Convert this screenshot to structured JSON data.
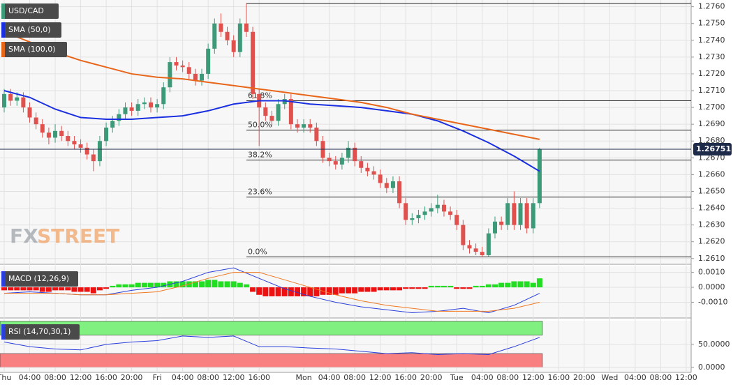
{
  "chart_data": [
    {
      "type": "candlestick",
      "title": "USD/CAD",
      "up_color": "#3c9a78",
      "down_color": "#e0504d",
      "open": [
        1.27,
        1.2708,
        1.2704,
        1.2706,
        1.27,
        1.2694,
        1.269,
        1.2685,
        1.2682,
        1.2686,
        1.2683,
        1.268,
        1.2678,
        1.2676,
        1.2672,
        1.2668,
        1.268,
        1.2688,
        1.2692,
        1.2696,
        1.27,
        1.2698,
        1.2702,
        1.2703,
        1.27,
        1.2702,
        1.2712,
        1.2727,
        1.2725,
        1.2724,
        1.272,
        1.2716,
        1.272,
        1.2735,
        1.275,
        1.2745,
        1.274,
        1.2733,
        1.275,
        1.2745,
        1.2708,
        1.27,
        1.2695,
        1.2692,
        1.2702,
        1.2705,
        1.269,
        1.2688,
        1.269,
        1.2688,
        1.268,
        1.267,
        1.2668,
        1.2666,
        1.267,
        1.2676,
        1.2668,
        1.2664,
        1.2662,
        1.266,
        1.2655,
        1.2652,
        1.2656,
        1.2643,
        1.2633,
        1.2634,
        1.2636,
        1.2638,
        1.264,
        1.2642,
        1.2638,
        1.2636,
        1.263,
        1.2618,
        1.2616,
        1.2614,
        1.2612,
        1.2625,
        1.2632,
        1.263,
        1.2643,
        1.263,
        1.2643,
        1.2628,
        1.2643
      ],
      "high": [
        1.2711,
        1.2711,
        1.2709,
        1.2709,
        1.2703,
        1.2697,
        1.2693,
        1.2688,
        1.269,
        1.2689,
        1.2686,
        1.2683,
        1.2681,
        1.2679,
        1.2675,
        1.2683,
        1.2691,
        1.2695,
        1.2699,
        1.2703,
        1.2703,
        1.2705,
        1.2706,
        1.2706,
        1.2705,
        1.2715,
        1.273,
        1.273,
        1.2728,
        1.2727,
        1.2723,
        1.2723,
        1.2738,
        1.2753,
        1.2756,
        1.2748,
        1.2743,
        1.2753,
        1.2762,
        1.2748,
        1.2711,
        1.2703,
        1.2698,
        1.2705,
        1.2708,
        1.2708,
        1.2693,
        1.2693,
        1.2693,
        1.2691,
        1.2683,
        1.2673,
        1.2671,
        1.2673,
        1.268,
        1.2679,
        1.2671,
        1.2667,
        1.2665,
        1.2663,
        1.2658,
        1.2659,
        1.2659,
        1.2646,
        1.2637,
        1.2639,
        1.2641,
        1.2643,
        1.2648,
        1.2645,
        1.2641,
        1.2639,
        1.2633,
        1.2621,
        1.2619,
        1.2617,
        1.2628,
        1.2635,
        1.2635,
        1.2646,
        1.265,
        1.2646,
        1.2646,
        1.2646,
        1.2676
      ],
      "low": [
        1.2697,
        1.2701,
        1.2701,
        1.2697,
        1.2691,
        1.2687,
        1.2682,
        1.2678,
        1.2679,
        1.268,
        1.2677,
        1.2675,
        1.2673,
        1.2669,
        1.2662,
        1.2665,
        1.2677,
        1.2685,
        1.2689,
        1.2693,
        1.2695,
        1.2695,
        1.2699,
        1.2697,
        1.2697,
        1.2699,
        1.2709,
        1.2722,
        1.2721,
        1.2717,
        1.2713,
        1.2713,
        1.2717,
        1.2732,
        1.2742,
        1.2737,
        1.273,
        1.273,
        1.2742,
        1.2705,
        1.2677,
        1.2692,
        1.2689,
        1.2689,
        1.2699,
        1.2687,
        1.2685,
        1.2685,
        1.2685,
        1.2677,
        1.2667,
        1.2665,
        1.2663,
        1.2663,
        1.2667,
        1.2665,
        1.2661,
        1.2659,
        1.2657,
        1.2652,
        1.2649,
        1.2649,
        1.264,
        1.263,
        1.263,
        1.2631,
        1.2633,
        1.2635,
        1.2637,
        1.2635,
        1.2633,
        1.2627,
        1.2615,
        1.2613,
        1.2612,
        1.2611,
        1.2611,
        1.2622,
        1.2627,
        1.2627,
        1.2627,
        1.2627,
        1.2625,
        1.2625,
        1.264
      ],
      "close": [
        1.2708,
        1.2704,
        1.2706,
        1.27,
        1.2694,
        1.269,
        1.2685,
        1.2682,
        1.2686,
        1.2683,
        1.268,
        1.2678,
        1.2676,
        1.2672,
        1.2668,
        1.268,
        1.2688,
        1.2692,
        1.2696,
        1.27,
        1.2698,
        1.2702,
        1.2703,
        1.27,
        1.2702,
        1.2712,
        1.2727,
        1.2725,
        1.2724,
        1.272,
        1.2716,
        1.272,
        1.2735,
        1.275,
        1.2745,
        1.274,
        1.2733,
        1.275,
        1.2745,
        1.2708,
        1.27,
        1.2695,
        1.2692,
        1.2702,
        1.2705,
        1.269,
        1.2688,
        1.269,
        1.2688,
        1.268,
        1.267,
        1.2668,
        1.2666,
        1.267,
        1.2676,
        1.2668,
        1.2664,
        1.2662,
        1.266,
        1.2655,
        1.2652,
        1.2656,
        1.2643,
        1.2633,
        1.2634,
        1.2636,
        1.2638,
        1.264,
        1.2642,
        1.2638,
        1.2636,
        1.263,
        1.2618,
        1.2616,
        1.2614,
        1.2612,
        1.2625,
        1.2632,
        1.263,
        1.2643,
        1.263,
        1.2643,
        1.2628,
        1.2643,
        1.26751
      ],
      "last_price": 1.26751,
      "last_price_color": "#1e2a4a",
      "series": [
        {
          "name": "SMA (50,0)",
          "color": "#1a2fe0",
          "values": [
            1.271,
            1.2706,
            1.2699,
            1.2694,
            1.2693,
            1.2693,
            1.2694,
            1.2695,
            1.2698,
            1.2702,
            1.2704,
            1.2704,
            1.2702,
            1.2701,
            1.27,
            1.2698,
            1.2696,
            1.2692,
            1.2686,
            1.2679,
            1.2671,
            1.2662
          ]
        },
        {
          "name": "SMA (100,0)",
          "color": "#e8661a",
          "values": [
            1.2745,
            1.2739,
            1.2733,
            1.2728,
            1.2724,
            1.272,
            1.2718,
            1.2717,
            1.2715,
            1.2713,
            1.2711,
            1.2709,
            1.2707,
            1.2705,
            1.2703,
            1.27,
            1.2696,
            1.2693,
            1.269,
            1.2687,
            1.2684,
            1.2681
          ]
        }
      ],
      "fib_top": 1.2762,
      "fib_levels": [
        {
          "value": 1.2704,
          "label": "61.8%"
        },
        {
          "value": 1.26865,
          "label": "50.0%"
        },
        {
          "value": 1.26687,
          "label": "38.2%"
        },
        {
          "value": 1.26466,
          "label": "23.6%"
        },
        {
          "value": 1.2611,
          "label": "0.0%"
        }
      ],
      "watermark": [
        "FX",
        "STREET"
      ],
      "ylim": [
        1.2607,
        1.2764
      ],
      "yticks": [
        {
          "value": 1.261,
          "label": "1.2610"
        },
        {
          "value": 1.262,
          "label": "1.2620"
        },
        {
          "value": 1.263,
          "label": "1.2630"
        },
        {
          "value": 1.264,
          "label": "1.2640"
        },
        {
          "value": 1.265,
          "label": "1.2650"
        },
        {
          "value": 1.266,
          "label": "1.2660"
        },
        {
          "value": 1.267,
          "label": "1.2670"
        },
        {
          "value": 1.268,
          "label": "1.2680"
        },
        {
          "value": 1.269,
          "label": "1.2690"
        },
        {
          "value": 1.27,
          "label": "1.2700"
        },
        {
          "value": 1.271,
          "label": "1.2710"
        },
        {
          "value": 1.272,
          "label": "1.2720"
        },
        {
          "value": 1.273,
          "label": "1.2730"
        },
        {
          "value": 1.274,
          "label": "1.2740"
        },
        {
          "value": 1.275,
          "label": "1.2750"
        },
        {
          "value": 1.276,
          "label": "1.2760"
        }
      ],
      "grid": true
    },
    {
      "type": "macd",
      "title": "MACD (12,26,9)",
      "title_color": "#2a3fdc",
      "histogram": [
        -0.0002,
        -0.0002,
        -0.0002,
        -0.0002,
        -0.0002,
        -0.0002,
        -0.0003,
        -0.0003,
        -0.0002,
        -0.0002,
        -0.0002,
        -0.0003,
        -0.0003,
        -0.0003,
        -0.0004,
        -0.0002,
        -0.0001,
        0.0001,
        0.0002,
        0.0002,
        0.0002,
        0.0003,
        0.0003,
        0.0003,
        0.0003,
        0.0003,
        0.0004,
        0.0004,
        0.0004,
        0.0004,
        0.0004,
        0.0004,
        0.0005,
        0.0005,
        0.0004,
        0.0004,
        0.0004,
        0.0003,
        0.0002,
        -0.0003,
        -0.0005,
        -0.0006,
        -0.0006,
        -0.0006,
        -0.0006,
        -0.0006,
        -0.0006,
        -0.0006,
        -0.0006,
        -0.0006,
        -0.0005,
        -0.0005,
        -0.0005,
        -0.0004,
        -0.0004,
        -0.0004,
        -0.0003,
        -0.0003,
        -0.0003,
        -0.0002,
        -0.0002,
        -0.0002,
        -0.0002,
        -0.0001,
        -0.0001,
        -0.0001,
        -0.0001,
        0.0001,
        0.0001,
        0.0001,
        0.0001,
        -0.0001,
        -0.0001,
        -0.0001,
        0.0001,
        0.0001,
        0.0002,
        0.0002,
        0.0003,
        0.0003,
        0.0004,
        0.0004,
        0.0004,
        0.0003,
        0.0006
      ],
      "up_color": "#22dd22",
      "down_color": "#ee1111",
      "macd_line": {
        "color": "#2a3fdc",
        "values": [
          -0.0004,
          -0.0003,
          -0.0004,
          -0.0005,
          -0.0005,
          -0.0002,
          0,
          0.0004,
          0.001,
          0.0013,
          0.0006,
          -0.0001,
          -0.0006,
          -0.001,
          -0.0013,
          -0.0015,
          -0.0017,
          -0.0016,
          -0.0014,
          -0.0017,
          -0.0012,
          -0.0004
        ]
      },
      "signal_line": {
        "color": "#f07820",
        "values": [
          -0.0004,
          -0.0004,
          -0.0004,
          -0.0005,
          -0.0005,
          -0.0004,
          -0.0003,
          0.0001,
          0.0006,
          0.001,
          0.001,
          0.0005,
          0,
          -0.0005,
          -0.0009,
          -0.0012,
          -0.0014,
          -0.0016,
          -0.0016,
          -0.0016,
          -0.0014,
          -0.001
        ]
      },
      "ylim": [
        -0.002,
        0.0014
      ],
      "yticks": [
        {
          "value": -0.001,
          "label": "-0.0010"
        },
        {
          "value": 0,
          "label": "0.0000"
        },
        {
          "value": 0.001,
          "label": "0.0010"
        }
      ]
    },
    {
      "type": "rsi",
      "title": "RSI (14,70,30,1)",
      "title_color": "#2a3fdc",
      "color": "#2a3fdc",
      "values": [
        55,
        45,
        40,
        38,
        50,
        55,
        58,
        68,
        65,
        68,
        45,
        45,
        42,
        40,
        35,
        30,
        32,
        28,
        30,
        28,
        45,
        65
      ],
      "bands": [
        {
          "from": 70,
          "to": 100,
          "color": "#80f080"
        },
        {
          "from": 0,
          "to": 30,
          "color": "#f88080"
        }
      ],
      "ylim": [
        -9,
        101
      ],
      "yticks": [
        {
          "value": 0,
          "label": "0.0000"
        },
        {
          "value": 50,
          "label": "50.0000"
        }
      ],
      "x_labels": [
        "Thu",
        "04:00",
        "08:00",
        "12:00",
        "16:00",
        "20:00",
        "Fri",
        "04:00",
        "08:00",
        "12:00",
        "16:00",
        "Mon",
        "04:00",
        "08:00",
        "12:00",
        "16:00",
        "20:00",
        "Tue",
        "04:00",
        "08:00",
        "12:00",
        "16:00",
        "20:00",
        "Wed",
        "04:00",
        "08:00",
        "12:00"
      ]
    }
  ]
}
